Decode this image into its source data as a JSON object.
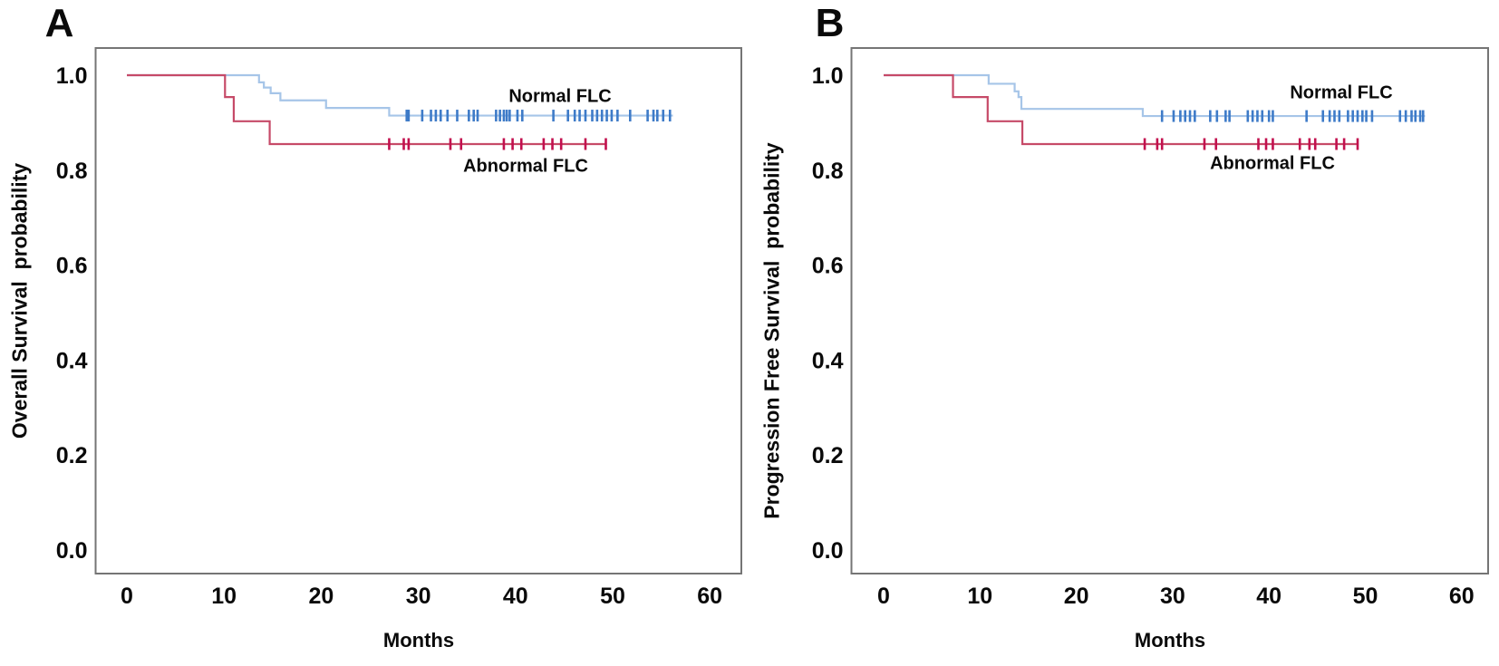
{
  "figure": {
    "background_color": "#ffffff",
    "axis_color": "#757575",
    "text_color": "#0a0a0a"
  },
  "chart_data": [
    {
      "type": "line",
      "subtype": "kaplan-meier-step",
      "panel_label": "A",
      "title": "",
      "xlabel": "Months",
      "ylabel": "Overall Survival  probability",
      "xlim": [
        -3.3,
        63.3
      ],
      "ylim": [
        -0.05,
        1.06
      ],
      "grid": false,
      "legend_position": "inline-annotations",
      "x_tick_values": [
        0,
        10,
        20,
        30,
        40,
        50,
        60
      ],
      "y_tick_values": [
        1.0,
        0.8,
        0.6,
        0.4,
        0.2,
        0.0
      ],
      "series": [
        {
          "name": "Normal FLC",
          "annotation": "Normal FLC",
          "line_color": "#a6c5e8",
          "censor_color": "#3e7bc8",
          "steps": [
            [
              0,
              1.0
            ],
            [
              13.6,
              0.985
            ],
            [
              14.1,
              0.974
            ],
            [
              14.8,
              0.962
            ],
            [
              15.8,
              0.947
            ],
            [
              20.5,
              0.931
            ],
            [
              27.0,
              0.915
            ]
          ],
          "end_time": 56.2,
          "censor_times": [
            28.8,
            29.0,
            30.4,
            31.3,
            31.8,
            32.3,
            33.0,
            34.0,
            35.2,
            35.7,
            36.1,
            38.0,
            38.4,
            38.8,
            39.1,
            39.4,
            40.2,
            40.7,
            43.9,
            45.4,
            46.1,
            46.6,
            47.2,
            47.9,
            48.4,
            48.9,
            49.4,
            49.9,
            50.5,
            51.8,
            53.6,
            54.2,
            54.6,
            55.2,
            55.9
          ]
        },
        {
          "name": "Abnormal FLC",
          "annotation": "Abnormal FLC",
          "line_color": "#c64a68",
          "censor_color": "#c2104e",
          "steps": [
            [
              0,
              1.0
            ],
            [
              10.1,
              0.954
            ],
            [
              11.0,
              0.903
            ],
            [
              14.7,
              0.855
            ]
          ],
          "end_time": 49.4,
          "censor_times": [
            27.0,
            28.5,
            29.0,
            33.3,
            34.4,
            38.8,
            39.7,
            40.6,
            42.9,
            43.8,
            44.7,
            47.2,
            49.3
          ]
        }
      ]
    },
    {
      "type": "line",
      "subtype": "kaplan-meier-step",
      "panel_label": "B",
      "title": "",
      "xlabel": "Months",
      "ylabel": "Progression Free Survival  probability",
      "xlim": [
        -3.3,
        63.3
      ],
      "ylim": [
        -0.05,
        1.06
      ],
      "grid": false,
      "legend_position": "inline-annotations",
      "x_tick_values": [
        0,
        10,
        20,
        30,
        40,
        50,
        60
      ],
      "y_tick_values": [
        1.0,
        0.8,
        0.6,
        0.4,
        0.2,
        0.0
      ],
      "series": [
        {
          "name": "Normal FLC",
          "annotation": "Normal FLC",
          "line_color": "#a6c5e8",
          "censor_color": "#3e7bc8",
          "steps": [
            [
              0,
              1.0
            ],
            [
              10.9,
              0.982
            ],
            [
              13.6,
              0.966
            ],
            [
              14.0,
              0.954
            ],
            [
              14.3,
              0.929
            ],
            [
              26.9,
              0.914
            ]
          ],
          "end_time": 56.2,
          "censor_times": [
            28.9,
            30.1,
            30.8,
            31.3,
            31.8,
            32.3,
            33.9,
            34.6,
            35.5,
            35.9,
            37.8,
            38.3,
            38.8,
            39.3,
            40.0,
            40.4,
            43.9,
            45.6,
            46.3,
            46.8,
            47.3,
            48.2,
            48.7,
            49.2,
            49.7,
            50.1,
            50.7,
            53.6,
            54.2,
            54.8,
            55.2,
            55.7,
            56.0
          ]
        },
        {
          "name": "Abnormal FLC",
          "annotation": "Abnormal FLC",
          "line_color": "#c64a68",
          "censor_color": "#c2104e",
          "steps": [
            [
              0,
              1.0
            ],
            [
              7.2,
              0.954
            ],
            [
              10.8,
              0.903
            ],
            [
              14.4,
              0.855
            ]
          ],
          "end_time": 49.3,
          "censor_times": [
            27.1,
            28.4,
            28.9,
            33.3,
            34.5,
            38.9,
            39.7,
            40.4,
            43.2,
            44.2,
            44.8,
            47.0,
            47.8,
            49.2
          ]
        }
      ]
    }
  ]
}
